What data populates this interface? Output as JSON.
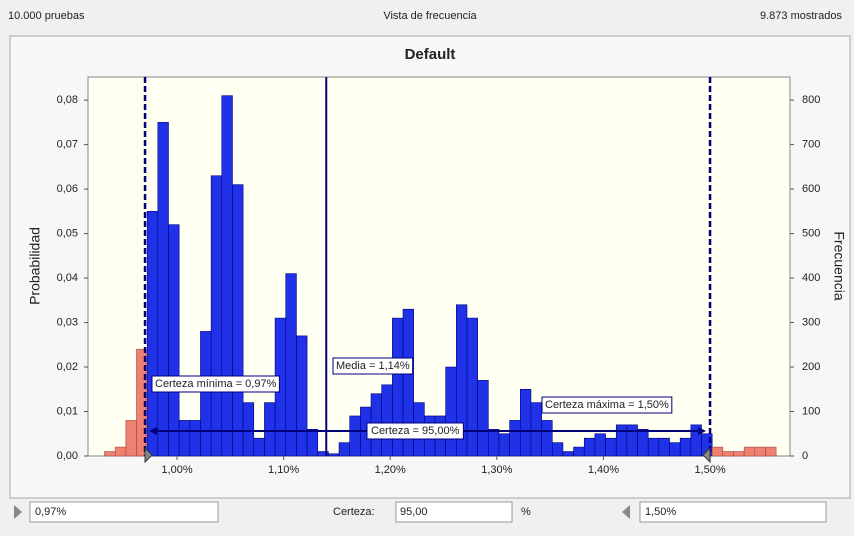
{
  "header": {
    "left": "10.000 pruebas",
    "center": "Vista de frecuencia",
    "right": "9.873 mostrados"
  },
  "chart_data": {
    "type": "histogram",
    "title": "Default",
    "y_label": "Probabilidad",
    "y2_label": "Frecuencia",
    "bins": [
      0.932,
      0.942,
      0.952,
      0.962,
      0.972,
      0.982,
      0.992,
      1.002,
      1.012,
      1.022,
      1.032,
      1.042,
      1.052,
      1.062,
      1.072,
      1.082,
      1.092,
      1.102,
      1.112,
      1.122,
      1.132,
      1.142,
      1.152,
      1.162,
      1.172,
      1.182,
      1.192,
      1.202,
      1.212,
      1.222,
      1.232,
      1.242,
      1.252,
      1.262,
      1.272,
      1.282,
      1.292,
      1.302,
      1.312,
      1.322,
      1.332,
      1.342,
      1.352,
      1.362,
      1.372,
      1.382,
      1.392,
      1.402,
      1.412,
      1.422,
      1.432,
      1.442,
      1.452,
      1.462,
      1.472,
      1.482,
      1.492,
      1.502,
      1.512,
      1.522,
      1.532,
      1.542,
      1.552,
      1.562
    ],
    "values": [
      0.001,
      0.002,
      0.008,
      0.024,
      0.055,
      0.075,
      0.052,
      0.008,
      0.008,
      0.028,
      0.063,
      0.081,
      0.061,
      0.012,
      0.004,
      0.012,
      0.031,
      0.041,
      0.027,
      0.006,
      0.001,
      0.0005,
      0.003,
      0.009,
      0.011,
      0.014,
      0.016,
      0.031,
      0.033,
      0.012,
      0.009,
      0.009,
      0.02,
      0.034,
      0.031,
      0.017,
      0.006,
      0.005,
      0.008,
      0.015,
      0.012,
      0.008,
      0.003,
      0.001,
      0.002,
      0.004,
      0.005,
      0.004,
      0.007,
      0.007,
      0.006,
      0.004,
      0.004,
      0.003,
      0.004,
      0.007,
      0.005,
      0.002,
      0.001,
      0.001,
      0.002,
      0.002,
      0.002
    ],
    "color": "#1f32e8",
    "outside_color": "#f08070",
    "xlim": [
      0.9165,
      1.575
    ],
    "xticks": [
      {
        "value": 1.0,
        "label": "1,00%"
      },
      {
        "value": 1.1,
        "label": "1,10%"
      },
      {
        "value": 1.2,
        "label": "1,20%"
      },
      {
        "value": 1.3,
        "label": "1,30%"
      },
      {
        "value": 1.4,
        "label": "1,40%"
      },
      {
        "value": 1.5,
        "label": "1,50%"
      }
    ],
    "ylim": [
      0,
      0.0852
    ],
    "yticks": [
      {
        "value": 0,
        "label": "0,00"
      },
      {
        "value": 0.01,
        "label": "0,01"
      },
      {
        "value": 0.02,
        "label": "0,02"
      },
      {
        "value": 0.03,
        "label": "0,03"
      },
      {
        "value": 0.04,
        "label": "0,04"
      },
      {
        "value": 0.05,
        "label": "0,05"
      },
      {
        "value": 0.06,
        "label": "0,06"
      },
      {
        "value": 0.07,
        "label": "0,07"
      },
      {
        "value": 0.08,
        "label": "0,08"
      }
    ],
    "y2lim": [
      0,
      852
    ],
    "y2ticks": [
      0,
      100,
      200,
      300,
      400,
      500,
      600,
      700,
      800
    ],
    "markers": [
      {
        "value": 0.97,
        "label": "Certeza mínima = 0,97%",
        "style": "dashed"
      },
      {
        "value": 1.14,
        "label": "Media = 1,14%",
        "style": "solid"
      },
      {
        "value": 1.5,
        "label": "Certeza máxima = 1,50%",
        "style": "dashed"
      }
    ],
    "certainty_label": "Certeza = 95,00%"
  },
  "controls": {
    "min": "0,97%",
    "certainty_caption": "Certeza:",
    "certainty": "95,00",
    "unit": "%",
    "max": "1,50%"
  }
}
